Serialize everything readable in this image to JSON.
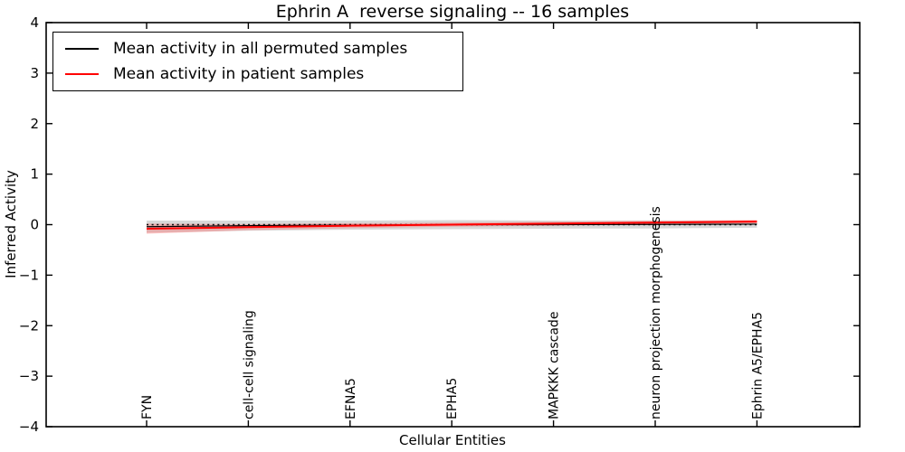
{
  "chart_data": {
    "type": "line",
    "title": "Ephrin A  reverse signaling -- 16 samples",
    "xlabel": "Cellular Entities",
    "ylabel": "Inferred Activity",
    "ylim": [
      -4,
      4
    ],
    "yticks": [
      4,
      3,
      2,
      1,
      0,
      -1,
      -2,
      -3,
      -4
    ],
    "categories": [
      "FYN",
      "cell-cell signaling",
      "EFNA5",
      "EPHA5",
      "MAPKKK cascade",
      "neuron projection morphogenesis",
      "Ephrin A5/EPHA5"
    ],
    "x_tick_rotation": 90,
    "grid": false,
    "legend_position": "upper left",
    "series": [
      {
        "name": "Mean activity in all permuted samples",
        "color": "#000000",
        "line_width": 1.2,
        "values": [
          -0.04,
          -0.02,
          -0.01,
          0.0,
          0.0,
          0.005,
          0.01
        ],
        "band_halfwidth": [
          0.12,
          0.1,
          0.09,
          0.09,
          0.08,
          0.08,
          0.07
        ],
        "band_color": "#999999"
      },
      {
        "name": "Mean activity in patient samples",
        "color": "#ff0000",
        "line_width": 2,
        "values": [
          -0.08,
          -0.05,
          -0.02,
          0.0,
          0.02,
          0.04,
          0.06
        ],
        "band_halfwidth": [
          0.1,
          0.06,
          0.05,
          0.04,
          0.04,
          0.035,
          0.035
        ],
        "band_color": "#ff6666"
      }
    ],
    "zero_line": {
      "value": 0,
      "color": "#111111",
      "style": "dotted"
    }
  }
}
